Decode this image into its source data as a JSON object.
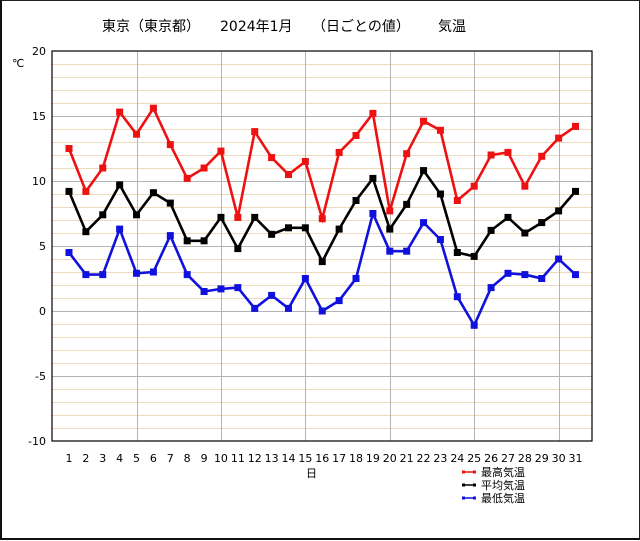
{
  "chart_data": {
    "type": "line",
    "title": "東京（東京都） 2024年1月 （日ごとの値） 気温",
    "title_parts": [
      "東京（東京都）",
      "2024年1月",
      "（日ごとの値）",
      "気温"
    ],
    "xlabel": "日",
    "ylabel": "℃",
    "ylim": [
      -10,
      20
    ],
    "yticks": [
      20,
      15,
      10,
      5,
      0,
      -5,
      -10
    ],
    "y_minor_step": 1,
    "y_major_step": 5,
    "x": [
      1,
      2,
      3,
      4,
      5,
      6,
      7,
      8,
      9,
      10,
      11,
      12,
      13,
      14,
      15,
      16,
      17,
      18,
      19,
      20,
      21,
      22,
      23,
      24,
      25,
      26,
      27,
      28,
      29,
      30,
      31
    ],
    "x_major_gridlines": [
      5,
      10,
      15,
      20,
      25,
      30
    ],
    "grid": true,
    "legend_position": "bottom-right",
    "series": [
      {
        "name": "最高気温",
        "color": "#ee1111",
        "values": [
          12.5,
          9.2,
          11.0,
          15.3,
          13.6,
          15.6,
          12.8,
          10.2,
          11.0,
          12.3,
          7.2,
          13.8,
          11.8,
          10.5,
          11.5,
          7.1,
          12.2,
          13.5,
          15.2,
          7.7,
          12.1,
          14.6,
          13.9,
          8.5,
          9.6,
          12.0,
          12.2,
          9.6,
          11.9,
          13.3,
          14.2
        ]
      },
      {
        "name": "平均気温",
        "color": "#000000",
        "values": [
          9.2,
          6.1,
          7.4,
          9.7,
          7.4,
          9.1,
          8.3,
          5.4,
          5.4,
          7.2,
          4.8,
          7.2,
          5.9,
          6.4,
          6.4,
          3.8,
          6.3,
          8.5,
          10.2,
          6.3,
          8.2,
          10.8,
          9.0,
          4.5,
          4.2,
          6.2,
          7.2,
          6.0,
          6.8,
          7.7,
          9.2
        ]
      },
      {
        "name": "最低気温",
        "color": "#1111dd",
        "values": [
          4.5,
          2.8,
          2.8,
          6.3,
          2.9,
          3.0,
          5.8,
          2.8,
          1.5,
          1.7,
          1.8,
          0.2,
          1.2,
          0.2,
          2.5,
          0.0,
          0.8,
          2.5,
          7.5,
          4.6,
          4.6,
          6.8,
          5.5,
          1.1,
          -1.1,
          1.8,
          2.9,
          2.8,
          2.5,
          4.0,
          2.8
        ]
      }
    ]
  },
  "colors": {
    "major_grid": "#b4b4b4",
    "minor_grid": "#ecdcbc",
    "axis": "#000000",
    "background": "#ffffff"
  }
}
